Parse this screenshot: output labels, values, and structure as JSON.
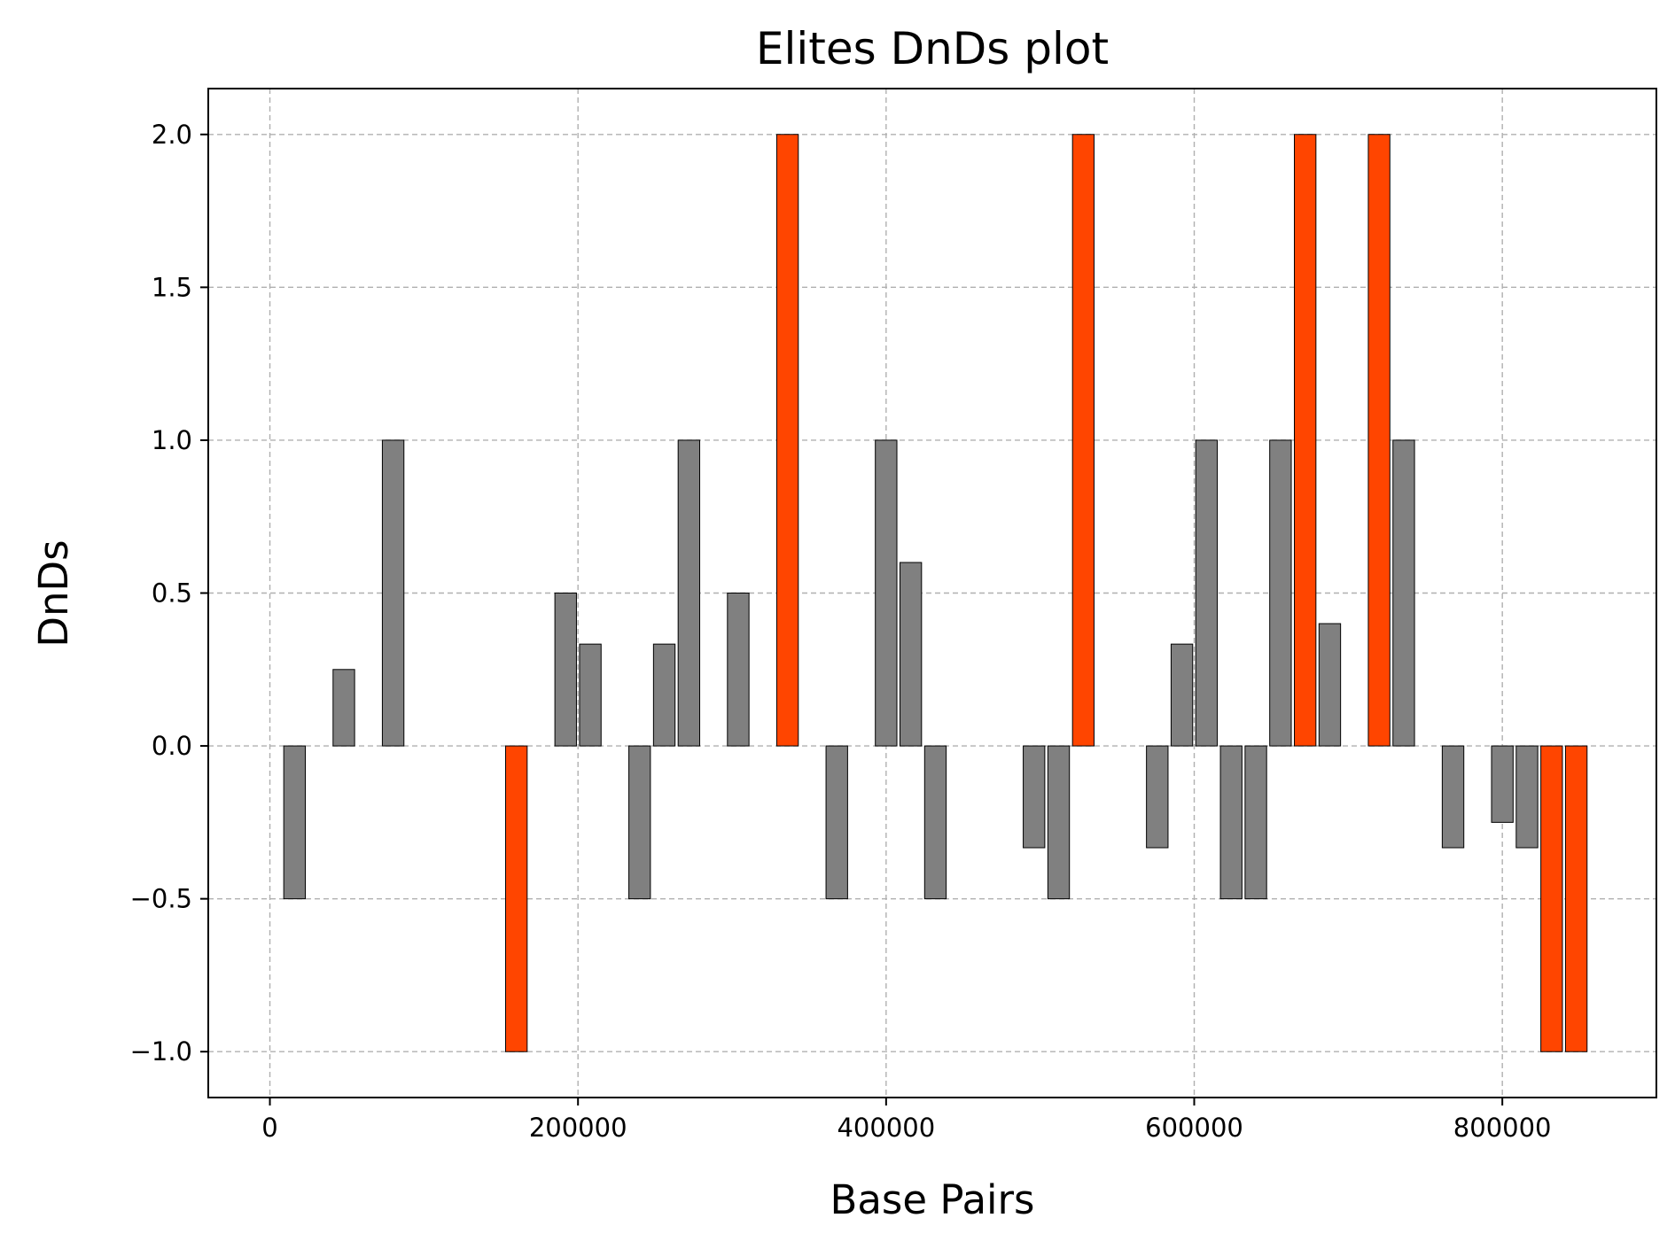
{
  "chart_data": {
    "type": "bar",
    "title": "Elites DnDs plot",
    "xlabel": "Base Pairs",
    "ylabel": "DnDs",
    "xlim": [
      -40000,
      900000
    ],
    "ylim": [
      -1.15,
      2.15
    ],
    "xticks": [
      0,
      200000,
      400000,
      600000,
      800000
    ],
    "xtick_labels": [
      "0",
      "200000",
      "400000",
      "600000",
      "800000"
    ],
    "yticks": [
      -1.0,
      -0.5,
      0.0,
      0.5,
      1.0,
      1.5,
      2.0
    ],
    "ytick_labels": [
      "−1.0",
      "−0.5",
      "0.0",
      "0.5",
      "1.0",
      "1.5",
      "2.0"
    ],
    "grid": true,
    "bar_width": 14000,
    "colors": {
      "normal": "#808080",
      "highlight": "#ff4500",
      "edge": "#000000"
    },
    "x": [
      16000,
      32000,
      48000,
      64000,
      80000,
      96000,
      112000,
      128000,
      144000,
      160000,
      176000,
      192000,
      208000,
      224000,
      240000,
      256000,
      272000,
      288000,
      304000,
      320000,
      336000,
      352000,
      368000,
      384000,
      400000,
      416000,
      432000,
      448000,
      464000,
      480000,
      496000,
      512000,
      528000,
      544000,
      560000,
      576000,
      592000,
      608000,
      624000,
      640000,
      656000,
      672000,
      688000,
      704000,
      720000,
      736000,
      752000,
      768000,
      784000,
      800000,
      816000,
      832000,
      848000
    ],
    "values": [
      -0.5,
      0,
      0.25,
      0,
      1.0,
      0,
      0,
      0,
      0,
      -1.0,
      0,
      0.5,
      0.333,
      0,
      -0.5,
      0.333,
      1.0,
      0,
      0.5,
      0,
      2.0,
      0,
      -0.5,
      0,
      1.0,
      0.6,
      -0.5,
      0,
      0,
      0,
      -0.333,
      -0.5,
      2.0,
      0,
      0,
      -0.333,
      0.333,
      1.0,
      -0.5,
      -0.5,
      1.0,
      2.0,
      0.4,
      0,
      2.0,
      1.0,
      0,
      -0.333,
      0,
      -0.25,
      -0.333,
      -1.0,
      -1.0
    ],
    "highlight": [
      false,
      false,
      false,
      false,
      false,
      false,
      false,
      false,
      false,
      true,
      false,
      false,
      false,
      false,
      false,
      false,
      false,
      false,
      false,
      false,
      true,
      false,
      false,
      false,
      false,
      false,
      false,
      false,
      false,
      false,
      false,
      false,
      true,
      false,
      false,
      false,
      false,
      false,
      false,
      false,
      false,
      true,
      false,
      false,
      true,
      false,
      false,
      false,
      false,
      false,
      false,
      true,
      true
    ]
  }
}
